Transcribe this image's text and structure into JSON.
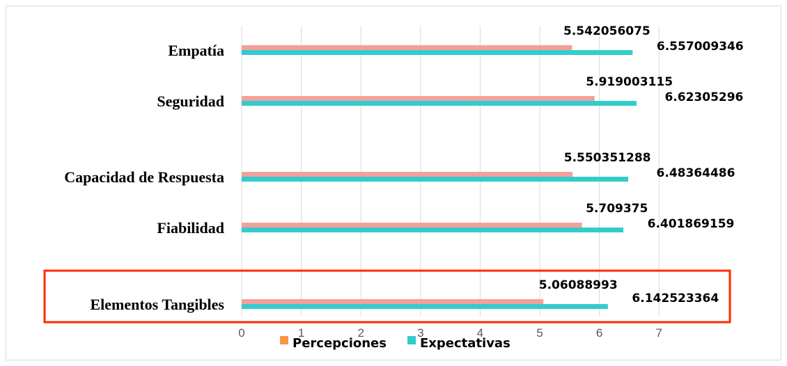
{
  "chart_data": {
    "type": "bar",
    "orientation": "horizontal",
    "categories": [
      "Empatía",
      "Seguridad",
      "Capacidad de Respuesta",
      "Fiabilidad",
      "Elementos Tangibles"
    ],
    "series": [
      {
        "name": "Percepciones",
        "color": "#f4a09a",
        "legend_color": "#f79646",
        "values": [
          5.542056075,
          5.919003115,
          5.550351288,
          5.709375,
          5.06088993
        ],
        "labels": [
          "5.542056075",
          "5.919003115",
          "5.550351288",
          "5.709375",
          "5.06088993"
        ]
      },
      {
        "name": "Expectativas",
        "color": "#33cccc",
        "legend_color": "#33cccc",
        "values": [
          6.557009346,
          6.62305296,
          6.48364486,
          6.401869159,
          6.142523364
        ],
        "labels": [
          "6.557009346",
          "6.62305296",
          "6.48364486",
          "6.401869159",
          "6.142523364"
        ]
      }
    ],
    "xlim": [
      0,
      7
    ],
    "xticks": [
      "0",
      "1",
      "2",
      "3",
      "4",
      "5",
      "6",
      "7"
    ],
    "grid": true,
    "legend": "bottom",
    "highlighted_category": "Elementos Tangibles",
    "highlight_color": "#ff2a00"
  }
}
